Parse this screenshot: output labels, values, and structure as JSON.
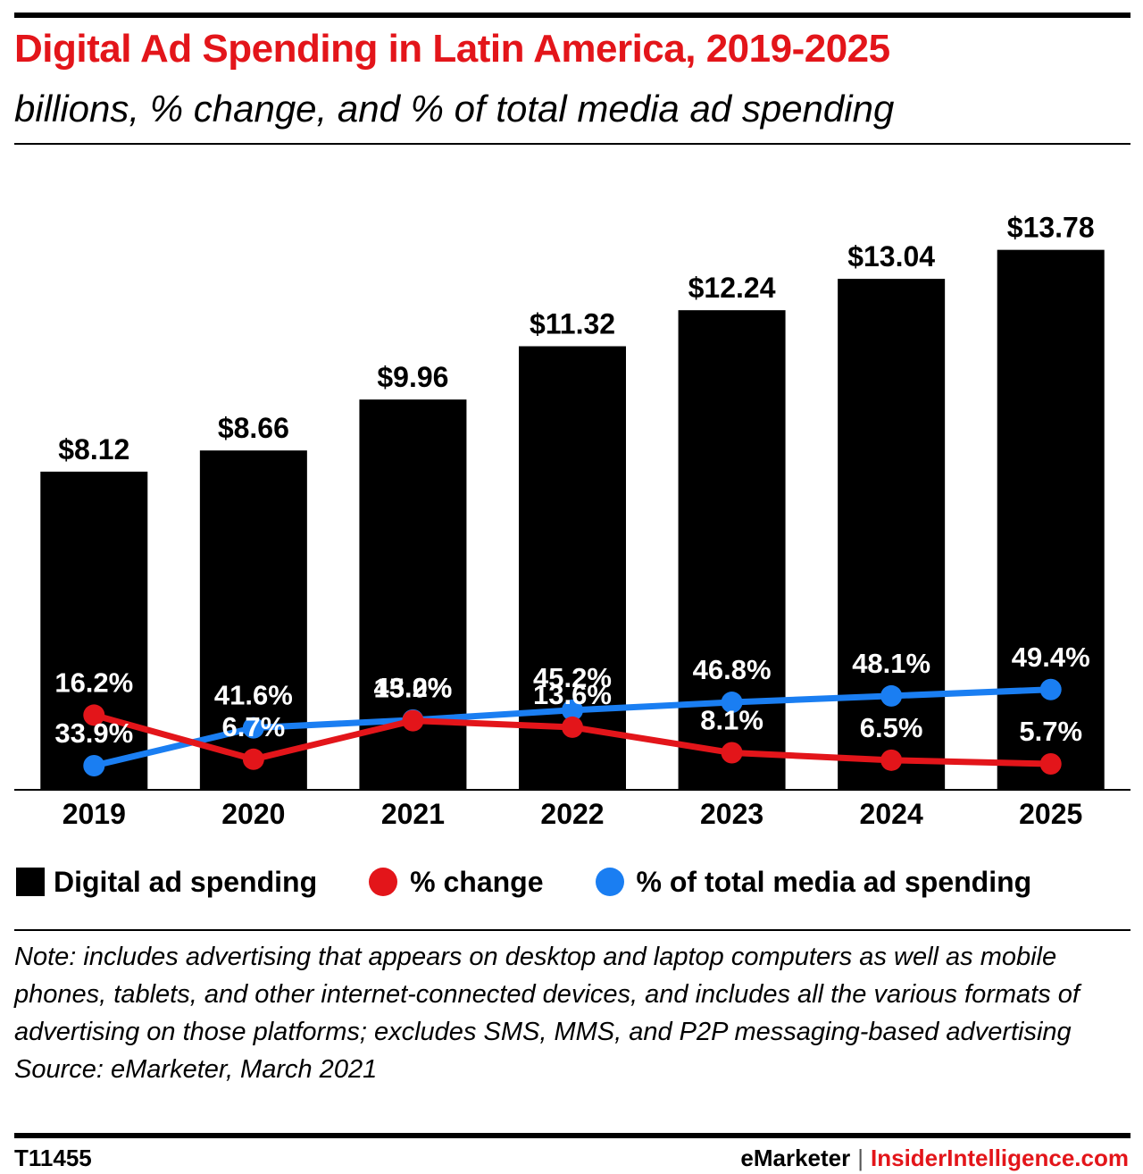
{
  "title": "Digital Ad Spending in Latin America, 2019-2025",
  "subtitle": "billions, % change, and % of total media ad spending",
  "colors": {
    "bar": "#000000",
    "change": "#e3151a",
    "share": "#1a7ef2",
    "title": "#e3151a"
  },
  "chart_data": {
    "type": "bar",
    "categories": [
      "2019",
      "2020",
      "2021",
      "2022",
      "2023",
      "2024",
      "2025"
    ],
    "series": [
      {
        "name": "Digital ad spending",
        "type": "bar",
        "values": [
          8.12,
          8.66,
          9.96,
          11.32,
          12.24,
          13.04,
          13.78
        ],
        "labels": [
          "$8.12",
          "$8.66",
          "$9.96",
          "$11.32",
          "$12.24",
          "$13.04",
          "$13.78"
        ]
      },
      {
        "name": "% change",
        "type": "line",
        "values": [
          16.2,
          6.7,
          15.0,
          13.6,
          8.1,
          6.5,
          5.7
        ],
        "labels": [
          "16.2%",
          "6.7%",
          "15.0%",
          "13.6%",
          "8.1%",
          "6.5%",
          "5.7%"
        ]
      },
      {
        "name": "% of total media ad spending",
        "type": "line",
        "values": [
          33.9,
          41.6,
          43.2,
          45.2,
          46.8,
          48.1,
          49.4
        ],
        "labels": [
          "33.9%",
          "41.6%",
          "43.2%",
          "45.2%",
          "46.8%",
          "48.1%",
          "49.4%"
        ]
      }
    ],
    "ylim": [
      0,
      14
    ],
    "grid": false,
    "legend": "bottom"
  },
  "legend": {
    "bar": "Digital ad spending",
    "change": "% change",
    "share": "% of total media ad spending"
  },
  "note": "Note: includes advertising that appears on desktop and laptop computers as well as mobile phones, tablets, and other internet-connected devices, and includes all the various formats of advertising on those platforms; excludes SMS, MMS, and P2P messaging-based advertising",
  "source": "Source: eMarketer, March 2021",
  "footer": {
    "id": "T11455",
    "brand1": "eMarketer",
    "separator": "|",
    "brand2": "InsiderIntelligence.com"
  }
}
